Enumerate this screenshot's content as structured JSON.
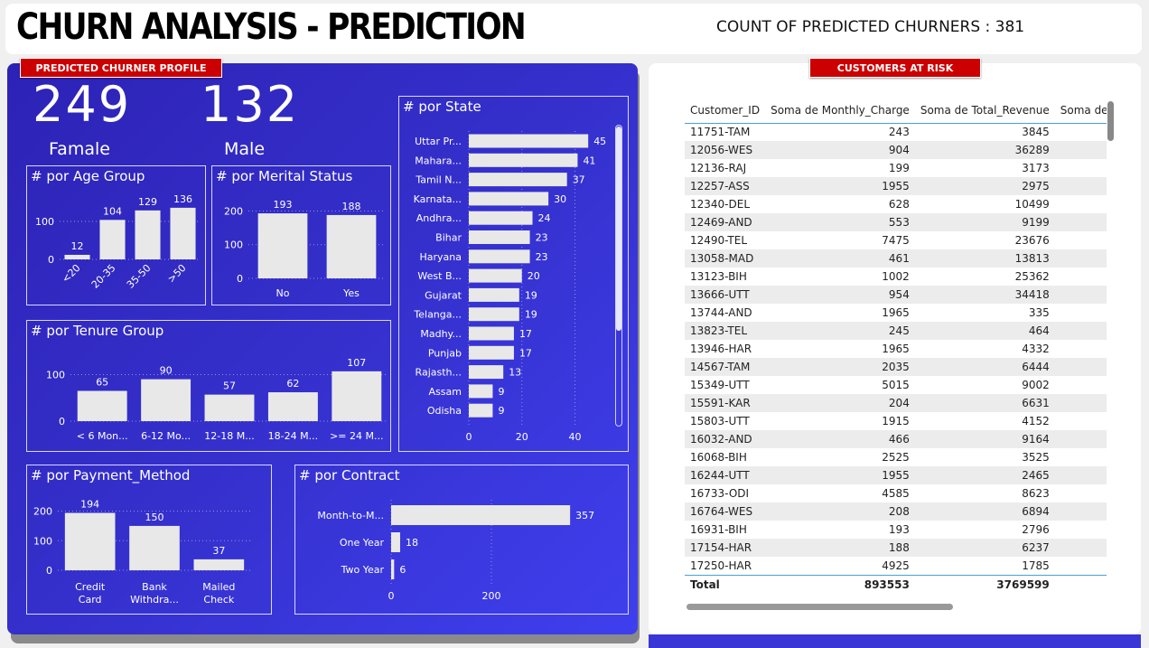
{
  "header": {
    "title": "CHURN ANALYSIS - PREDICTION",
    "count_label": "COUNT OF PREDICTED CHURNERS : 381"
  },
  "profile": {
    "banner": "PREDICTED CHURNER PROFILE",
    "female_count": "249",
    "female_label": "Famale",
    "male_count": "132",
    "male_label": "Male"
  },
  "risk": {
    "banner": "CUSTOMERS AT RISK"
  },
  "colors": {
    "panel": "#3530cc",
    "bar": "#e8e8e8",
    "banner": "#cc0000",
    "text": "#ffffff"
  },
  "chart_data": [
    {
      "id": "age",
      "type": "bar",
      "title": "# por Age Group",
      "categories": [
        "<20",
        "20-35",
        "35-50",
        ">50"
      ],
      "values": [
        12,
        104,
        129,
        136
      ],
      "yticks": [
        0,
        100
      ],
      "ylim": [
        0,
        150
      ]
    },
    {
      "id": "marital",
      "type": "bar",
      "title": "# por Merital Status",
      "categories": [
        "No",
        "Yes"
      ],
      "values": [
        193,
        188
      ],
      "yticks": [
        0,
        100,
        200
      ],
      "ylim": [
        0,
        220
      ]
    },
    {
      "id": "tenure",
      "type": "bar",
      "title": "# por Tenure Group",
      "categories": [
        "< 6 Mon...",
        "6-12 Mo...",
        "12-18 M...",
        "18-24 M...",
        ">= 24 M..."
      ],
      "values": [
        65,
        90,
        57,
        62,
        107
      ],
      "yticks": [
        0,
        100
      ],
      "ylim": [
        0,
        130
      ]
    },
    {
      "id": "payment",
      "type": "bar",
      "title": "# por Payment_Method",
      "categories": [
        "Credit Card",
        "Bank Withdra...",
        "Mailed Check"
      ],
      "values": [
        194,
        150,
        37
      ],
      "yticks": [
        0,
        100,
        200
      ],
      "ylim": [
        0,
        220
      ]
    },
    {
      "id": "state",
      "type": "bar",
      "orientation": "horizontal",
      "title": "# por State",
      "categories": [
        "Uttar Pr...",
        "Mahara...",
        "Tamil N...",
        "Karnata...",
        "Andhra...",
        "Bihar",
        "Haryana",
        "West B...",
        "Gujarat",
        "Telanga...",
        "Madhy...",
        "Punjab",
        "Rajasth...",
        "Assam",
        "Odisha"
      ],
      "values": [
        45,
        41,
        37,
        30,
        24,
        23,
        23,
        20,
        19,
        19,
        17,
        17,
        13,
        9,
        9
      ],
      "xticks": [
        0,
        20,
        40
      ],
      "xlim": [
        0,
        48
      ]
    },
    {
      "id": "contract",
      "type": "bar",
      "orientation": "horizontal",
      "title": "# por Contract",
      "categories": [
        "Month-to-M...",
        "One Year",
        "Two Year"
      ],
      "values": [
        357,
        18,
        6
      ],
      "xticks": [
        0,
        200
      ],
      "xlim": [
        0,
        400
      ]
    }
  ],
  "table": {
    "columns": [
      "Customer_ID",
      "Soma de Monthly_Charge",
      "Soma de Total_Revenue",
      "Soma de To"
    ],
    "rows": [
      [
        "11751-TAM",
        "243",
        "3845"
      ],
      [
        "12056-WES",
        "904",
        "36289"
      ],
      [
        "12136-RAJ",
        "199",
        "3173"
      ],
      [
        "12257-ASS",
        "1955",
        "2975"
      ],
      [
        "12340-DEL",
        "628",
        "10499"
      ],
      [
        "12469-AND",
        "553",
        "9199"
      ],
      [
        "12490-TEL",
        "7475",
        "23676"
      ],
      [
        "13058-MAD",
        "461",
        "13813"
      ],
      [
        "13123-BIH",
        "1002",
        "25362"
      ],
      [
        "13666-UTT",
        "954",
        "34418"
      ],
      [
        "13744-AND",
        "1965",
        "335"
      ],
      [
        "13823-TEL",
        "245",
        "464"
      ],
      [
        "13946-HAR",
        "1965",
        "4332"
      ],
      [
        "14567-TAM",
        "2035",
        "6444"
      ],
      [
        "15349-UTT",
        "5015",
        "9002"
      ],
      [
        "15591-KAR",
        "204",
        "6631"
      ],
      [
        "15803-UTT",
        "1915",
        "4152"
      ],
      [
        "16032-AND",
        "466",
        "9164"
      ],
      [
        "16068-BIH",
        "2525",
        "3525"
      ],
      [
        "16244-UTT",
        "1955",
        "2465"
      ],
      [
        "16733-ODI",
        "4585",
        "8623"
      ],
      [
        "16764-WES",
        "208",
        "6894"
      ],
      [
        "16931-BIH",
        "193",
        "2796"
      ],
      [
        "17154-HAR",
        "188",
        "6237"
      ],
      [
        "17250-HAR",
        "4925",
        "1785"
      ]
    ],
    "total": [
      "Total",
      "893553",
      "3769599"
    ]
  }
}
